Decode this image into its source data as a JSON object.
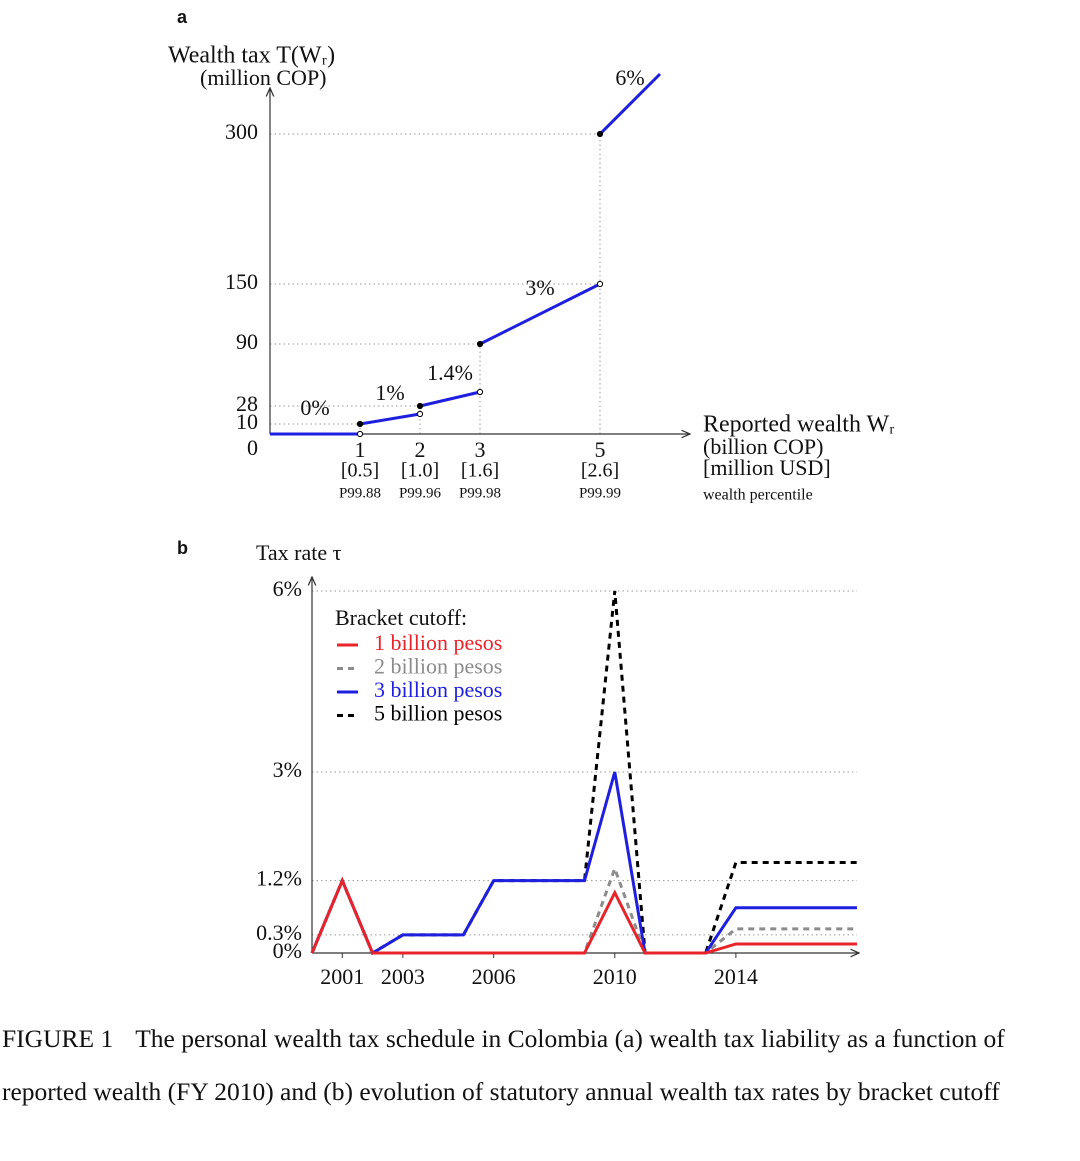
{
  "chart_data": [
    {
      "type": "line",
      "panel": "a",
      "ylabel": "Wealth tax T(Wᵣ)",
      "ylabel_unit": "(million COP)",
      "xlabel": "Reported wealth Wᵣ",
      "xlabel_unit": "(billion COP)",
      "xlabel_usd": "[million USD]",
      "xlabel_percentile": "wealth percentile",
      "xlim": [
        -0.5,
        6.5
      ],
      "ylim": [
        0,
        360
      ],
      "xticks": [
        1,
        2,
        3,
        5
      ],
      "xtick_usd": [
        "[0.5]",
        "[1.0]",
        "[1.6]",
        "[2.6]"
      ],
      "xtick_percentiles": [
        "P99.88",
        "P99.96",
        "P99.98",
        "P99.99"
      ],
      "yticks": [
        0,
        10,
        28,
        90,
        150,
        300
      ],
      "color": "#1f1fe0",
      "grid": "dotted",
      "series": [
        {
          "name": "0%",
          "x": [
            -0.5,
            1
          ],
          "values": [
            0,
            0
          ],
          "markers": [
            null,
            "open"
          ]
        },
        {
          "name": "1%",
          "x": [
            1,
            2
          ],
          "values": [
            10,
            20
          ],
          "markers": [
            "closed",
            "open"
          ]
        },
        {
          "name": "1.4%",
          "x": [
            2,
            3
          ],
          "values": [
            28,
            42
          ],
          "markers": [
            "closed",
            "open"
          ]
        },
        {
          "name": "3%",
          "x": [
            3,
            5
          ],
          "values": [
            90,
            150
          ],
          "markers": [
            "closed",
            "open"
          ]
        },
        {
          "name": "6%",
          "x": [
            5,
            6
          ],
          "values": [
            300,
            360
          ],
          "markers": [
            "closed",
            null
          ]
        }
      ]
    },
    {
      "type": "line",
      "panel": "b",
      "ylabel": "Tax rate τ",
      "legend_title": "Bracket cutoff:",
      "legend": "upper-left",
      "xlim": [
        2000,
        2018
      ],
      "ylim": [
        0,
        6
      ],
      "xticks": [
        2001,
        2003,
        2006,
        2010,
        2014
      ],
      "yticks": [
        {
          "value": 0,
          "label": "0%"
        },
        {
          "value": 0.3,
          "label": "0.3%"
        },
        {
          "value": 1.2,
          "label": "1.2%"
        },
        {
          "value": 3,
          "label": "3%"
        },
        {
          "value": 6,
          "label": "6%"
        }
      ],
      "grid": "dotted",
      "x": [
        2000,
        2001,
        2002,
        2003,
        2004,
        2005,
        2006,
        2007,
        2008,
        2009,
        2010,
        2011,
        2012,
        2013,
        2014,
        2015,
        2016,
        2017,
        2018
      ],
      "series": [
        {
          "name": "5 billion pesos",
          "color": "#000000",
          "dashed": true,
          "values": [
            0,
            1.2,
            0,
            0.3,
            0.3,
            0.3,
            1.2,
            1.2,
            1.2,
            1.2,
            6,
            0,
            0,
            0,
            1.5,
            1.5,
            1.5,
            1.5,
            1.5
          ]
        },
        {
          "name": "2 billion pesos",
          "color": "#8c8c8c",
          "dashed": true,
          "values": [
            0,
            1.2,
            0,
            0,
            0,
            0,
            0,
            0,
            0,
            0,
            1.4,
            0,
            0,
            0,
            0.4,
            0.4,
            0.4,
            0.4,
            0.4
          ]
        },
        {
          "name": "3 billion pesos",
          "color": "#1f1fe0",
          "dashed": false,
          "values": [
            0,
            1.2,
            0,
            0.3,
            0.3,
            0.3,
            1.2,
            1.2,
            1.2,
            1.2,
            3,
            0,
            0,
            0,
            0.75,
            0.75,
            0.75,
            0.75,
            0.75
          ]
        },
        {
          "name": "1 billion pesos",
          "color": "#e8242a",
          "dashed": false,
          "values": [
            0,
            1.2,
            0,
            0,
            0,
            0,
            0,
            0,
            0,
            0,
            1,
            0,
            0,
            0,
            0.15,
            0.15,
            0.15,
            0.15,
            0.15
          ]
        }
      ],
      "legend_order": [
        3,
        1,
        2,
        0
      ]
    }
  ],
  "caption": {
    "label": "FIGURE 1",
    "text": "The personal wealth tax schedule in Colombia (a) wealth tax liability as a function of reported wealth (FY 2010) and (b) evolution of statutory annual wealth tax rates by bracket cutoff"
  }
}
